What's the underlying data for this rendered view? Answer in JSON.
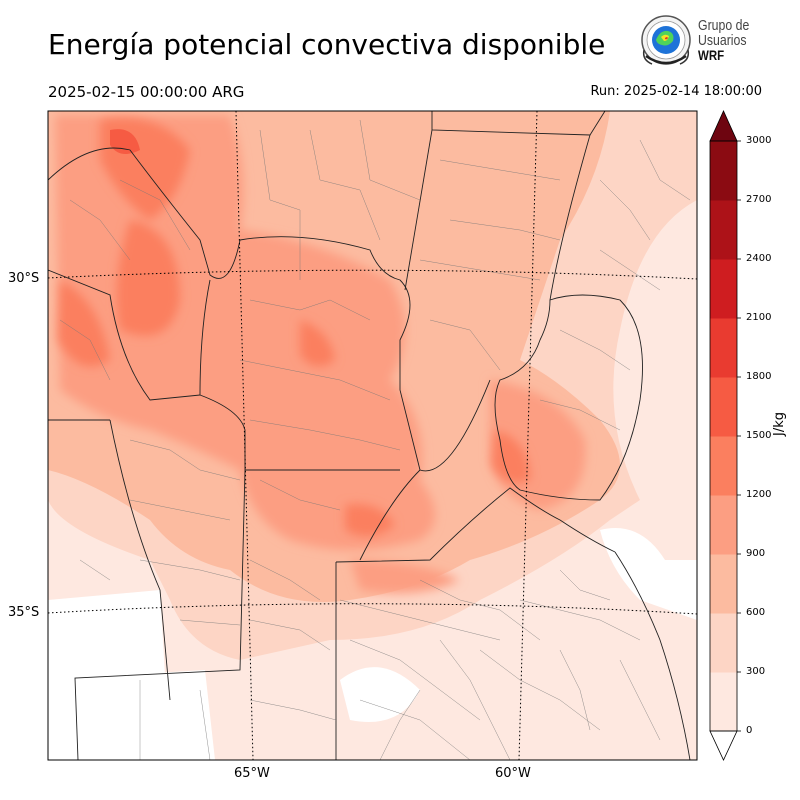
{
  "title": "Energía potencial convectiva disponible",
  "valid_time": "2025-02-15 00:00:00 ARG",
  "run_label": "Run: 2025-02-14 18:00:00",
  "logo": {
    "line1": "Grupo de",
    "line2": "Usuarios",
    "line3": "WRF",
    "icon": "wrf-globe-seal-icon"
  },
  "lat_labels": [
    "30°S",
    "35°S"
  ],
  "lon_labels": [
    "65°W",
    "60°W"
  ],
  "colorbar": {
    "unit": "J/kg",
    "ticks": [
      "0",
      "300",
      "600",
      "900",
      "1200",
      "1500",
      "1800",
      "2100",
      "2400",
      "2700",
      "3000"
    ],
    "colors": [
      "#fee8e0",
      "#fdd5c5",
      "#fcbba0",
      "#fc9e82",
      "#fb7f5f",
      "#f65b43",
      "#e93b30",
      "#cf1d20",
      "#ad1218",
      "#8b0b12",
      "#6e0510"
    ],
    "extend": "both"
  },
  "chart_data": {
    "type": "heatmap",
    "field": "CAPE",
    "unit": "J/kg",
    "levels": [
      0,
      300,
      600,
      900,
      1200,
      1500,
      1800,
      2100,
      2400,
      2700,
      3000
    ],
    "lat_gridlines": [
      "30°S",
      "35°S"
    ],
    "lon_gridlines": [
      "65°W",
      "60°W"
    ],
    "valid_time": "2025-02-15 00:00:00 ARG",
    "run_time": "Run: 2025-02-14 18:00:00"
  }
}
